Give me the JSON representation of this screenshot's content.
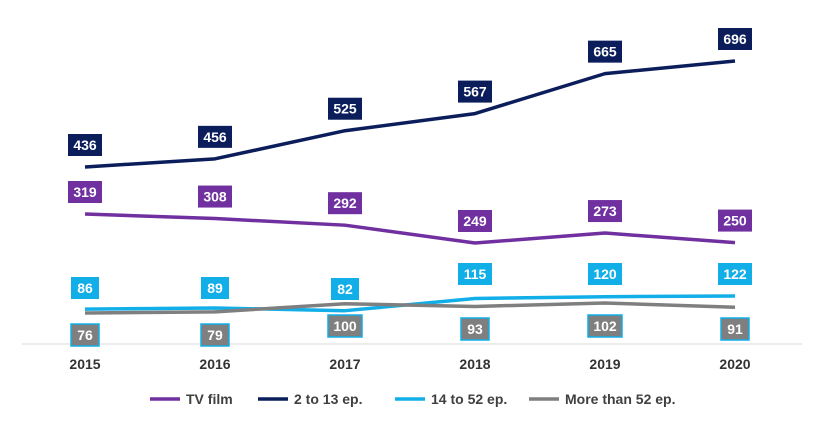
{
  "chart_data": {
    "type": "line",
    "categories": [
      "2015",
      "2016",
      "2017",
      "2018",
      "2019",
      "2020"
    ],
    "series": [
      {
        "name": "TV film",
        "color": "#7030a0",
        "values": [
          319,
          308,
          292,
          249,
          273,
          250
        ]
      },
      {
        "name": "2 to 13 ep.",
        "color": "#0b1e5b",
        "values": [
          436,
          456,
          525,
          567,
          665,
          696
        ]
      },
      {
        "name": "14 to 52 ep.",
        "color": "#11aee8",
        "values": [
          86,
          89,
          82,
          115,
          120,
          122
        ]
      },
      {
        "name": "More than 52 ep.",
        "color": "#7f7f7f",
        "values": [
          76,
          79,
          100,
          93,
          102,
          91
        ]
      }
    ],
    "ylim": [
      0,
      750
    ],
    "grid": false,
    "legend_position": "bottom"
  }
}
